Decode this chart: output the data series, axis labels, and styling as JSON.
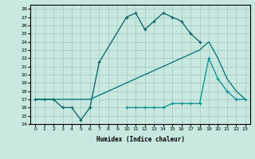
{
  "xlabel": "Humidex (Indice chaleur)",
  "bg_color": "#c8e8e0",
  "grid_color": "#a0c8c0",
  "line_color1": "#006060",
  "line_color2": "#007070",
  "line_color3": "#009090",
  "xlim": [
    -0.5,
    23.5
  ],
  "ylim": [
    14,
    28.5
  ],
  "xticks": [
    0,
    1,
    2,
    3,
    4,
    5,
    6,
    7,
    8,
    9,
    10,
    11,
    12,
    13,
    14,
    15,
    16,
    17,
    18,
    19,
    20,
    21,
    22,
    23
  ],
  "yticks": [
    14,
    15,
    16,
    17,
    18,
    19,
    20,
    21,
    22,
    23,
    24,
    25,
    26,
    27,
    28
  ],
  "series1_x": [
    0,
    1,
    2,
    3,
    4,
    5,
    6,
    7,
    10,
    11,
    12,
    13,
    14,
    15,
    16,
    17,
    18
  ],
  "series1_y": [
    17,
    17,
    17,
    16,
    16,
    14.5,
    16,
    21.5,
    27,
    27.5,
    25.5,
    26.5,
    27.5,
    27,
    26.5,
    25,
    24
  ],
  "series2_x": [
    0,
    1,
    2,
    3,
    4,
    5,
    6,
    7,
    8,
    9,
    10,
    11,
    12,
    13,
    14,
    15,
    16,
    17,
    18,
    19,
    20,
    21,
    22,
    23
  ],
  "series2_y": [
    17,
    17,
    17,
    17,
    17,
    17,
    17,
    17.5,
    18,
    18.5,
    19,
    19.5,
    20,
    20.5,
    21,
    21.5,
    22,
    22.5,
    23,
    24,
    22,
    19.5,
    18,
    17
  ],
  "series3_x": [
    10,
    11,
    12,
    13,
    14,
    15,
    16,
    17,
    18,
    19,
    20,
    21,
    22,
    23
  ],
  "series3_y": [
    16,
    16,
    16,
    16,
    16,
    16.5,
    16.5,
    16.5,
    16.5,
    22,
    19.5,
    18,
    17,
    17
  ]
}
